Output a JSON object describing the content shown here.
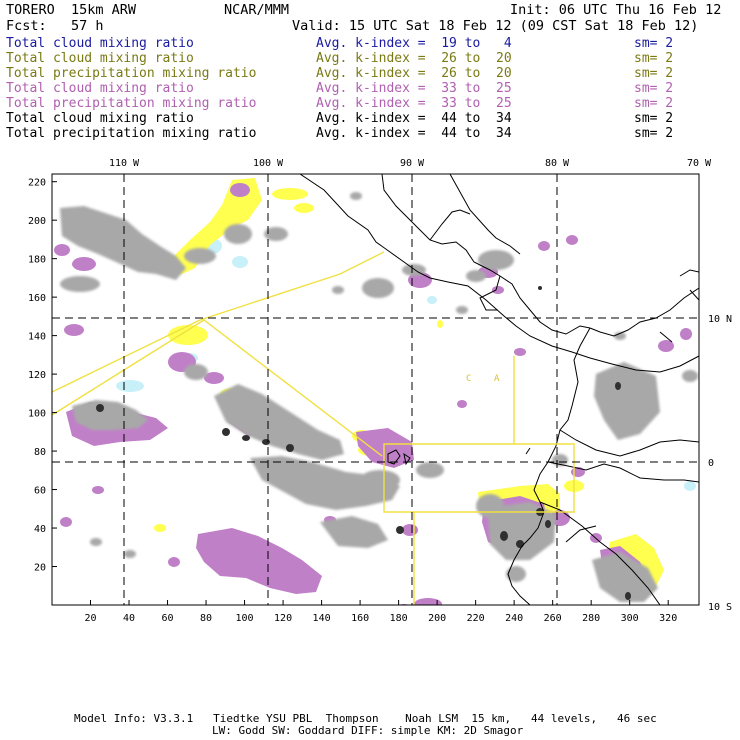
{
  "header": {
    "model": "TORERO  15km ARW",
    "org": "NCAR/MMM",
    "init": "Init: 06 UTC Thu 16 Feb 12",
    "fcst": "Fcst:   57 h",
    "valid": "Valid: 15 UTC Sat 18 Feb 12 (09 CST Sat 18 Feb 12)"
  },
  "legend_rows": [
    {
      "field": "Total cloud mixing ratio",
      "index": "Avg. k-index =  19 to   4",
      "sm": "sm= 2",
      "color": "#1a1aa0"
    },
    {
      "field": "Total cloud mixing ratio",
      "index": "Avg. k-index =  26 to  20",
      "sm": "sm= 2",
      "color": "#7a7a14"
    },
    {
      "field": "Total precipitation mixing ratio",
      "index": "Avg. k-index =  26 to  20",
      "sm": "sm= 2",
      "color": "#7a7a14"
    },
    {
      "field": "Total cloud mixing ratio",
      "index": "Avg. k-index =  33 to  25",
      "sm": "sm= 2",
      "color": "#b060b0"
    },
    {
      "field": "Total precipitation mixing ratio",
      "index": "Avg. k-index =  33 to  25",
      "sm": "sm= 2",
      "color": "#b060b0"
    },
    {
      "field": "Total cloud mixing ratio",
      "index": "Avg. k-index =  44 to  34",
      "sm": "sm= 2",
      "color": "#000000"
    },
    {
      "field": "Total precipitation mixing ratio",
      "index": "Avg. k-index =  44 to  34",
      "sm": "sm= 2",
      "color": "#000000"
    }
  ],
  "map": {
    "lon_labels": [
      "110 W",
      "100 W",
      "90 W",
      "80 W",
      "70 W"
    ],
    "lat_labels": [
      "10 N",
      "0",
      "10 S"
    ],
    "x_ticks": [
      "20",
      "40",
      "60",
      "80",
      "100",
      "120",
      "140",
      "160",
      "180",
      "200",
      "220",
      "240",
      "260",
      "280",
      "300",
      "320"
    ],
    "y_ticks": [
      "20",
      "40",
      "60",
      "80",
      "100",
      "120",
      "140",
      "160",
      "180",
      "200",
      "220"
    ],
    "region_labels": [
      "C",
      "A"
    ],
    "colors": {
      "cloud_gray": "#a0a0a0",
      "dark_core": "#303030",
      "yellow": "#ffff50",
      "purple": "#c080c8",
      "cyan": "#c8f0f8",
      "box": "#f0e040",
      "coast": "#000000"
    }
  },
  "footer": {
    "line1": "Model Info: V3.3.1   Tiedtke YSU PBL  Thompson    Noah LSM  15 km,   44 levels,   46 sec",
    "line2": "LW: Godd SW: Goddard DIFF: simple KM: 2D Smagor"
  }
}
